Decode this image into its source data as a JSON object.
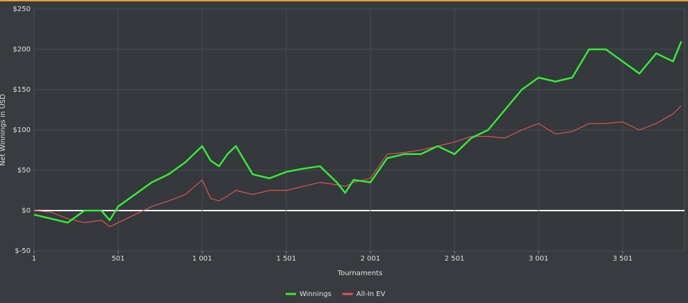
{
  "chart_data": {
    "type": "line",
    "x_label": "Tournaments",
    "y_label": "Net Winnings in USD",
    "x": [
      1,
      101,
      201,
      301,
      401,
      451,
      501,
      601,
      701,
      801,
      901,
      1001,
      1051,
      1101,
      1151,
      1201,
      1301,
      1401,
      1501,
      1601,
      1701,
      1801,
      1851,
      1901,
      2001,
      2101,
      2201,
      2301,
      2401,
      2501,
      2601,
      2701,
      2801,
      2901,
      3001,
      3101,
      3201,
      3301,
      3401,
      3501,
      3601,
      3701,
      3801,
      3850
    ],
    "series": [
      {
        "name": "Winnings",
        "color": "#33ee33",
        "values": [
          -5,
          -10,
          -15,
          0,
          0,
          -12,
          5,
          20,
          35,
          45,
          60,
          80,
          62,
          55,
          70,
          80,
          45,
          40,
          48,
          52,
          55,
          35,
          22,
          38,
          35,
          65,
          70,
          70,
          80,
          70,
          90,
          100,
          125,
          150,
          165,
          160,
          165,
          200,
          200,
          185,
          170,
          195,
          185,
          210
        ]
      },
      {
        "name": "All-In EV",
        "color": "#e05555",
        "values": [
          0,
          -2,
          -10,
          -15,
          -12,
          -20,
          -15,
          -5,
          5,
          12,
          20,
          38,
          15,
          12,
          18,
          25,
          20,
          25,
          25,
          30,
          35,
          32,
          30,
          35,
          40,
          70,
          72,
          75,
          80,
          85,
          92,
          92,
          90,
          100,
          108,
          95,
          98,
          108,
          108,
          110,
          100,
          108,
          120,
          130
        ]
      }
    ],
    "xlim": [
      1,
      3869
    ],
    "xticks": [
      1,
      501,
      {
        "value": 1001,
        "label": "1 001"
      },
      {
        "value": 1501,
        "label": "1 501"
      },
      {
        "value": 2001,
        "label": "2 001"
      },
      {
        "value": 2501,
        "label": "2 501"
      },
      {
        "value": 3001,
        "label": "3 001"
      },
      {
        "value": 3501,
        "label": "3 501"
      }
    ],
    "ylim": [
      -50,
      250
    ],
    "yticks": [
      {
        "value": -50,
        "label": "$-50"
      },
      {
        "value": 0,
        "label": "$0"
      },
      {
        "value": 50,
        "label": "$50"
      },
      {
        "value": 100,
        "label": "$100"
      },
      {
        "value": 150,
        "label": "$150"
      },
      {
        "value": 200,
        "label": "$200"
      },
      {
        "value": 250,
        "label": "$250"
      }
    ],
    "grid": true,
    "legend": "bottom"
  }
}
